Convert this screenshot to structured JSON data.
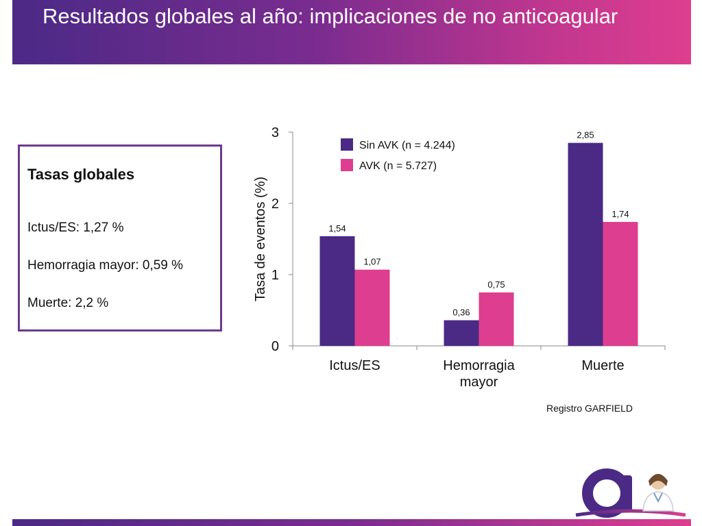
{
  "header": {
    "title": "Resultados globales al año: implicaciones de no anticoagular"
  },
  "summary": {
    "heading": "Tasas globales",
    "items": [
      "Ictus/ES: 1,27 %",
      "Hemorragia mayor: 0,59 %",
      "Muerte: 2,2 %"
    ]
  },
  "source": "Registro GARFIELD",
  "colors": {
    "accent_purple": "#4b2a86",
    "accent_pink": "#de3e8f",
    "series_1": "#4b2a86",
    "series_2": "#de3e8f"
  },
  "logo": {
    "icon": "letter-a-logo-with-doctor"
  },
  "chart_data": {
    "type": "bar",
    "title": "",
    "xlabel": "",
    "ylabel": "Tasa de eventos (%)",
    "ylim": [
      0,
      3
    ],
    "yticks": [
      "0",
      "1",
      "2",
      "3"
    ],
    "categories": [
      [
        "Ictus/ES"
      ],
      [
        "Hemorragia",
        "mayor"
      ],
      [
        "Muerte"
      ]
    ],
    "legend_position": "top-left",
    "grid": false,
    "series": [
      {
        "name": "Sin AVK (n = 4.244)",
        "values": [
          1.54,
          0.36,
          2.85
        ],
        "labels": [
          "1,54",
          "0,36",
          "2,85"
        ],
        "color": "#4b2a86"
      },
      {
        "name": "AVK (n = 5.727)",
        "values": [
          1.07,
          0.75,
          1.74
        ],
        "labels": [
          "1,07",
          "0,75",
          "1,74"
        ],
        "color": "#de3e8f"
      }
    ]
  }
}
